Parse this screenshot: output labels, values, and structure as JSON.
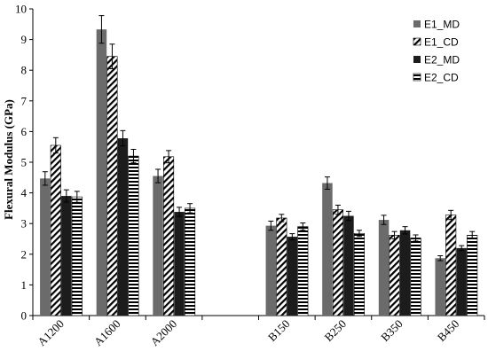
{
  "chart_data": {
    "type": "bar",
    "title": "",
    "xlabel": "",
    "ylabel": "Flexural Modulus (GPa)",
    "ylim": [
      0,
      10
    ],
    "yticks": [
      0,
      1,
      2,
      3,
      4,
      5,
      6,
      7,
      8,
      9,
      10
    ],
    "grid": false,
    "legend_position": "top-right",
    "categories": [
      "A1200",
      "A1600",
      "A2000",
      "",
      "B150",
      "B250",
      "B350",
      "B450"
    ],
    "series": [
      {
        "name": "E1_MD",
        "pattern": "solid-gray",
        "color": "#6b6b6b",
        "values": [
          4.47,
          9.33,
          4.55,
          null,
          2.93,
          4.32,
          3.12,
          1.87
        ],
        "errors": [
          0.22,
          0.45,
          0.22,
          null,
          0.15,
          0.2,
          0.15,
          0.08
        ]
      },
      {
        "name": "E1_CD",
        "pattern": "diagonal-hatch",
        "color": "#000000",
        "values": [
          5.55,
          8.45,
          5.18,
          null,
          3.18,
          3.45,
          2.62,
          3.28
        ],
        "errors": [
          0.25,
          0.4,
          0.2,
          null,
          0.12,
          0.15,
          0.12,
          0.15
        ]
      },
      {
        "name": "E2_MD",
        "pattern": "solid-black",
        "color": "#1a1a1a",
        "values": [
          3.9,
          5.78,
          3.38,
          null,
          2.57,
          3.25,
          2.78,
          2.2
        ],
        "errors": [
          0.2,
          0.25,
          0.15,
          null,
          0.1,
          0.15,
          0.12,
          0.08
        ]
      },
      {
        "name": "E2_CD",
        "pattern": "horizontal-stripes",
        "color": "#000000",
        "values": [
          3.87,
          5.2,
          3.5,
          null,
          2.9,
          2.68,
          2.53,
          2.62
        ],
        "errors": [
          0.18,
          0.22,
          0.15,
          null,
          0.12,
          0.1,
          0.1,
          0.12
        ]
      }
    ]
  }
}
